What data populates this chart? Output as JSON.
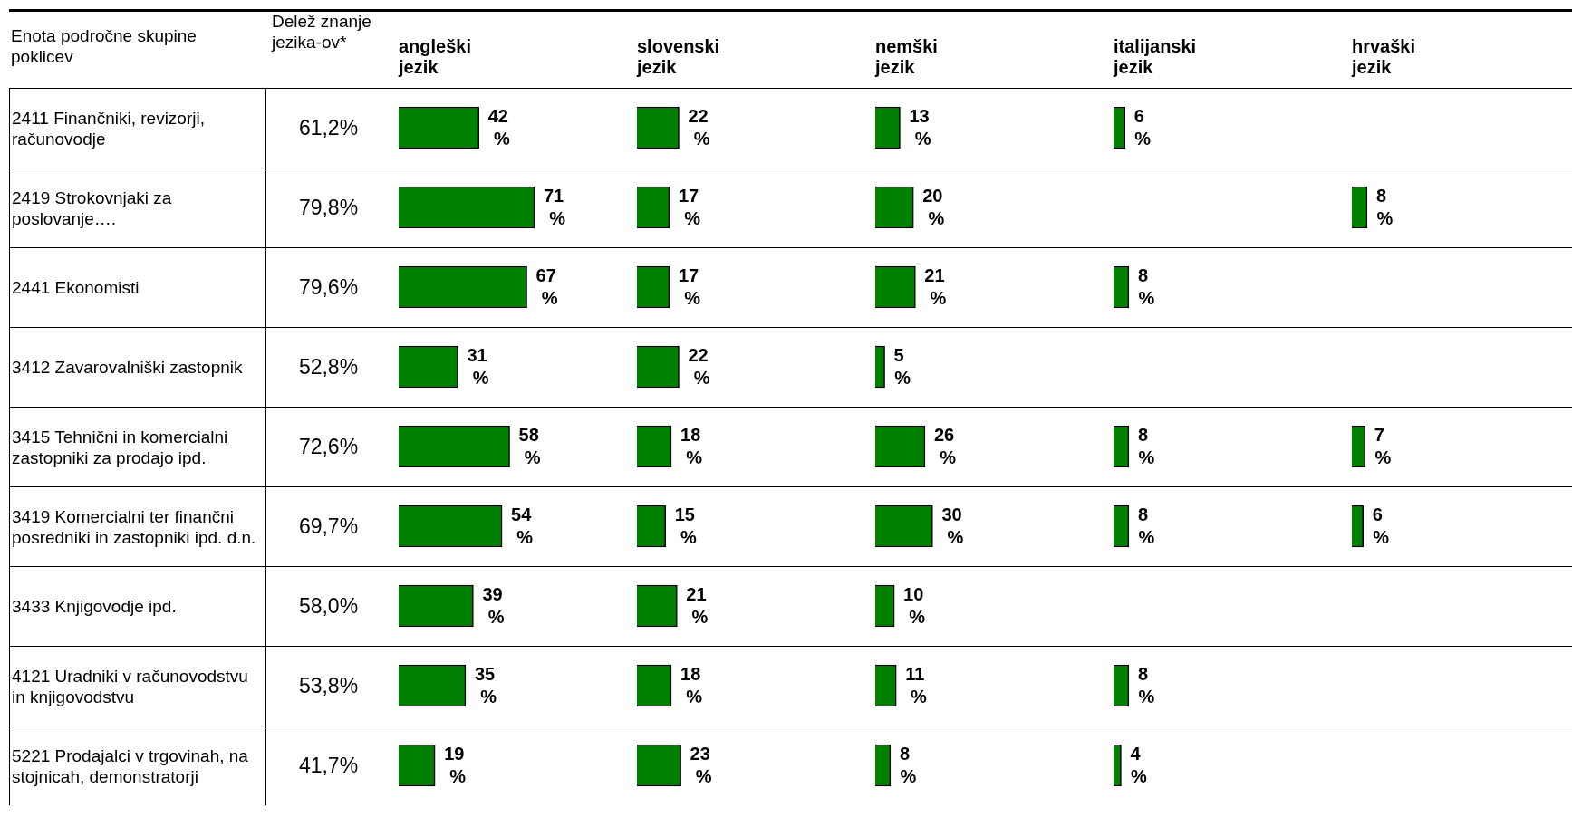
{
  "chart_data": [
    {
      "type": "other",
      "title": "Delež znanje jezika-ov*",
      "ylabel": "Enota področne skupine poklicev",
      "categories": [
        "2411 Finančniki, revizorji, računovodje",
        "2419 Strokovnjaki za poslovanje….",
        "2441 Ekonomisti",
        "3412 Zavarovalniški zastopnik",
        "3415 Tehnični in komercialni zastopniki za prodajo ipd.",
        "3419 Komercialni ter finančni posredniki in zastopniki ipd. d.n.",
        "3433 Knjigovodje ipd.",
        "4121 Uradniki v računovodstvu in knjigovodstvu",
        "5221 Prodajalci v trgovinah, na stojnicah, demonstratorji"
      ],
      "value_labels": [
        "61,2%",
        "79,8%",
        "79,6%",
        "52,8%",
        "72,6%",
        "69,7%",
        "58,0%",
        "53,8%",
        "41,7%"
      ]
    },
    {
      "type": "bar",
      "orientation": "horizontal",
      "title": "angleški jezik",
      "tick_labels": false,
      "categories": [
        null,
        null,
        null,
        null,
        null,
        null,
        null,
        null,
        null
      ],
      "color": "#008000",
      "values": [
        42,
        71,
        67,
        31,
        58,
        54,
        39,
        35,
        19
      ],
      "value_labels": [
        "42 %",
        "71 %",
        "67 %",
        "31 %",
        "58 %",
        "54 %",
        "39 %",
        "35 %",
        "19 %"
      ]
    },
    {
      "type": "bar",
      "orientation": "horizontal",
      "title": "slovenski jezik",
      "tick_labels": false,
      "categories": [
        null,
        null,
        null,
        null,
        null,
        null,
        null,
        null,
        null
      ],
      "color": "#008000",
      "values": [
        22,
        17,
        17,
        22,
        18,
        15,
        21,
        18,
        23
      ],
      "value_labels": [
        "22 %",
        "17 %",
        "17 %",
        "22 %",
        "18 %",
        "15 %",
        "21 %",
        "18 %",
        "23 %"
      ]
    },
    {
      "type": "bar",
      "orientation": "horizontal",
      "title": "nemški jezik",
      "tick_labels": false,
      "categories": [
        null,
        null,
        null,
        null,
        null,
        null,
        null,
        null,
        null
      ],
      "color": "#008000",
      "values": [
        13,
        20,
        21,
        5,
        26,
        30,
        10,
        11,
        8
      ],
      "value_labels": [
        "13 %",
        "20 %",
        "21 %",
        "5 %",
        "26 %",
        "30 %",
        "10 %",
        "11 %",
        "8 %"
      ]
    },
    {
      "type": "bar",
      "orientation": "horizontal",
      "title": "italijanski jezik",
      "tick_labels": false,
      "categories": [
        null,
        null,
        null,
        null,
        null,
        null,
        null,
        null,
        null
      ],
      "color": "#008000",
      "values": [
        6,
        null,
        8,
        null,
        8,
        8,
        null,
        8,
        4
      ],
      "value_labels": [
        "6 %",
        null,
        "8 %",
        null,
        "8 %",
        "8 %",
        null,
        "8 %",
        "4 %"
      ]
    },
    {
      "type": "bar",
      "orientation": "horizontal",
      "title": "hrvaški jezik",
      "tick_labels": false,
      "categories": [
        null,
        null,
        null,
        null,
        null,
        null,
        null,
        null,
        null
      ],
      "color": "#008000",
      "values": [
        null,
        8,
        null,
        null,
        7,
        6,
        null,
        null,
        null
      ],
      "value_labels": [
        null,
        "8 %",
        null,
        null,
        "7 %",
        "6 %",
        null,
        null,
        null
      ]
    }
  ]
}
